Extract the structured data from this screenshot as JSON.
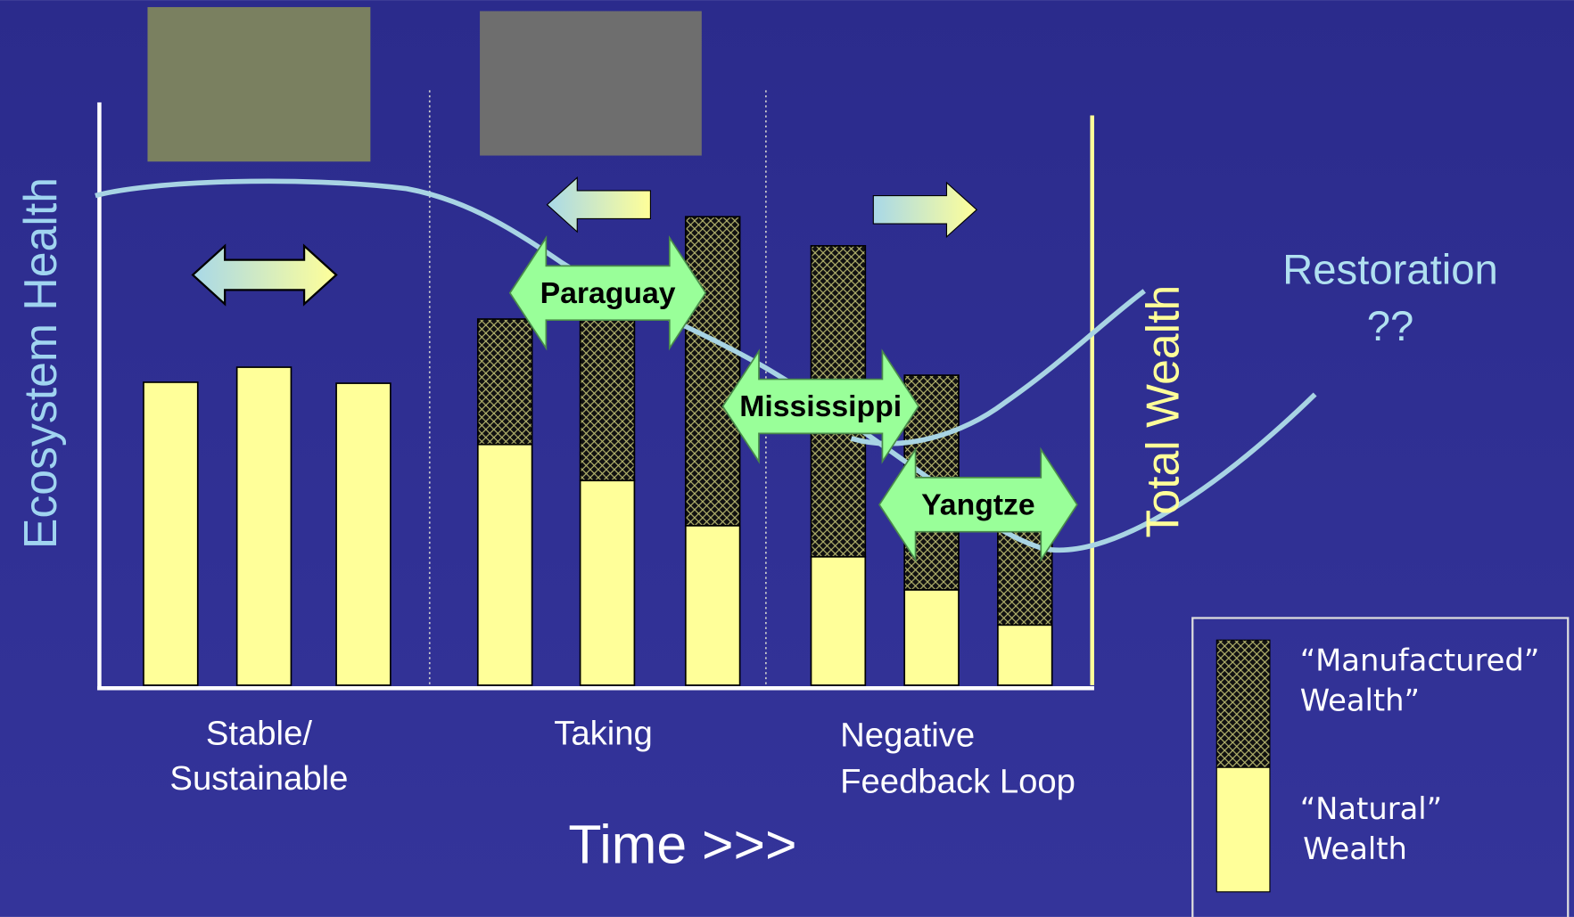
{
  "axis_labels": {
    "y": "Ecosystem Health",
    "x": "Time >>>",
    "y2": "Total Wealth"
  },
  "phases": [
    {
      "lines": [
        "Stable/",
        "Sustainable"
      ]
    },
    {
      "lines": [
        "Taking"
      ]
    },
    {
      "lines": [
        "Negative",
        "Feedback Loop"
      ]
    }
  ],
  "restoration": [
    "Restoration",
    "??"
  ],
  "rivers": [
    "Paraguay",
    "Mississippi",
    "Yangtze"
  ],
  "legend": [
    {
      "lines": [
        "“Manufactured”",
        "Wealth”"
      ]
    },
    {
      "lines": [
        "“Natural”",
        "Wealth"
      ]
    }
  ]
}
